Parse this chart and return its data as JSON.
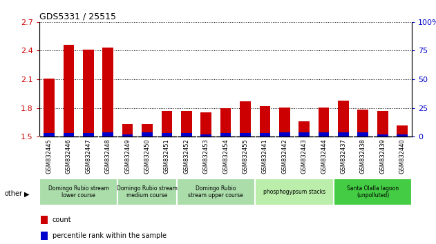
{
  "title": "GDS5331 / 25515",
  "samples": [
    "GSM832445",
    "GSM832446",
    "GSM832447",
    "GSM832448",
    "GSM832449",
    "GSM832450",
    "GSM832451",
    "GSM832452",
    "GSM832453",
    "GSM832454",
    "GSM832455",
    "GSM832441",
    "GSM832442",
    "GSM832443",
    "GSM832444",
    "GSM832437",
    "GSM832438",
    "GSM832439",
    "GSM832440"
  ],
  "count_values": [
    2.105,
    2.46,
    2.41,
    2.435,
    1.635,
    1.635,
    1.77,
    1.77,
    1.755,
    1.795,
    1.87,
    1.82,
    1.805,
    1.66,
    1.805,
    1.88,
    1.785,
    1.765,
    1.62
  ],
  "percentile_pct": [
    3,
    3,
    3,
    4,
    2,
    4,
    3,
    3,
    2,
    3,
    3,
    3,
    4,
    4,
    4,
    4,
    4,
    2,
    2
  ],
  "ylim_left": [
    1.5,
    2.7
  ],
  "ylim_right": [
    0,
    100
  ],
  "yticks_left": [
    1.5,
    1.8,
    2.1,
    2.4,
    2.7
  ],
  "yticks_right": [
    0,
    25,
    50,
    75,
    100
  ],
  "bar_width": 0.55,
  "count_color": "#cc0000",
  "percentile_color": "#0000cc",
  "plot_bg": "#ffffff",
  "label_bg": "#d0d0d0",
  "groups": [
    {
      "label": "Domingo Rubio stream\nlower course",
      "start": 0,
      "end": 3,
      "color": "#aaddaa"
    },
    {
      "label": "Domingo Rubio stream\nmedium course",
      "start": 4,
      "end": 6,
      "color": "#aaddaa"
    },
    {
      "label": "Domingo Rubio\nstream upper course",
      "start": 7,
      "end": 10,
      "color": "#aaddaa"
    },
    {
      "label": "phosphogypsum stacks",
      "start": 11,
      "end": 14,
      "color": "#bbeeaa"
    },
    {
      "label": "Santa Olalla lagoon\n(unpolluted)",
      "start": 15,
      "end": 18,
      "color": "#44cc44"
    }
  ]
}
